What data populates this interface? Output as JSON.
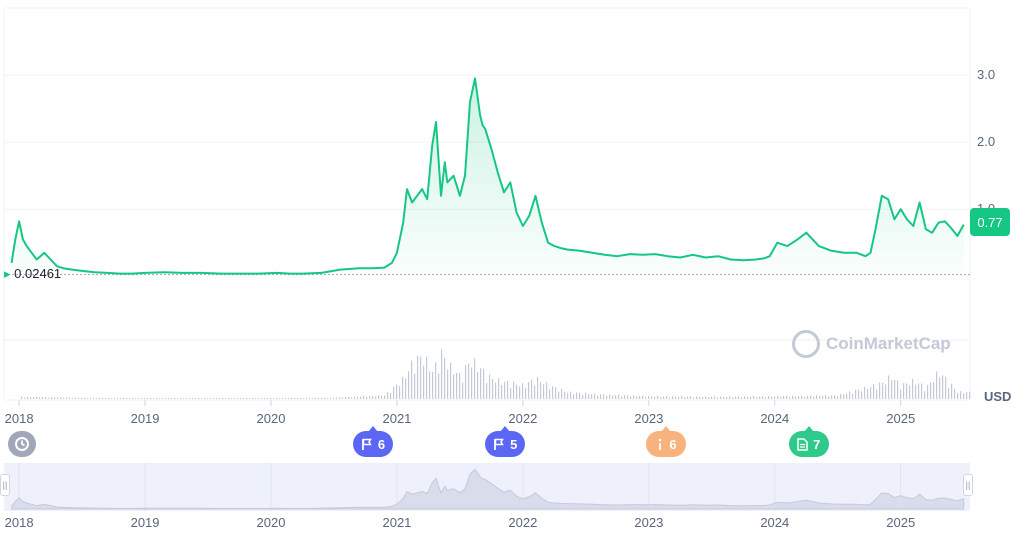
{
  "chart_data": {
    "type": "area",
    "xlim": [
      2017.88,
      2025.55
    ],
    "ylim": [
      -0.95,
      4.0
    ],
    "price_ticks": [
      "3.0",
      "2.0",
      "1.0"
    ],
    "price_tick_values": [
      3.0,
      2.0,
      1.0
    ],
    "year_ticks": [
      "2018",
      "2019",
      "2020",
      "2021",
      "2022",
      "2023",
      "2024",
      "2025"
    ],
    "year_tick_values": [
      2018,
      2019,
      2020,
      2021,
      2022,
      2023,
      2024,
      2025
    ],
    "currency": "USD",
    "base_value": 0.02461,
    "base_label": "0.02461",
    "current_value_label": "0.77",
    "watermark": "CoinMarketCap",
    "line_color": "#16c784",
    "series": [
      {
        "x": [
          2017.94,
          2017.97,
          2018.0,
          2018.03,
          2018.06,
          2018.1,
          2018.14,
          2018.2,
          2018.25,
          2018.3,
          2018.35,
          2018.42,
          2018.5,
          2018.6,
          2018.7,
          2018.8,
          2018.9,
          2019.0,
          2019.15,
          2019.3,
          2019.45,
          2019.6,
          2019.75,
          2019.9,
          2020.05,
          2020.15,
          2020.25,
          2020.4,
          2020.55,
          2020.7,
          2020.8,
          2020.9,
          2020.96,
          2021.0,
          2021.05,
          2021.08,
          2021.12,
          2021.16,
          2021.2,
          2021.24,
          2021.28,
          2021.31,
          2021.35,
          2021.38,
          2021.4,
          2021.45,
          2021.5,
          2021.54,
          2021.58,
          2021.62,
          2021.66,
          2021.68,
          2021.7,
          2021.75,
          2021.8,
          2021.85,
          2021.9,
          2021.95,
          2022.0,
          2022.05,
          2022.1,
          2022.15,
          2022.2,
          2022.25,
          2022.3,
          2022.35,
          2022.45,
          2022.55,
          2022.65,
          2022.75,
          2022.85,
          2022.95,
          2023.05,
          2023.15,
          2023.25,
          2023.35,
          2023.45,
          2023.55,
          2023.65,
          2023.75,
          2023.85,
          2023.92,
          2023.96,
          2024.02,
          2024.1,
          2024.18,
          2024.25,
          2024.35,
          2024.45,
          2024.55,
          2024.65,
          2024.72,
          2024.76,
          2024.8,
          2024.85,
          2024.9,
          2024.95,
          2025.0,
          2025.05,
          2025.1,
          2025.15,
          2025.2,
          2025.25,
          2025.3,
          2025.35,
          2025.4,
          2025.45,
          2025.5
        ],
        "y": [
          0.2,
          0.55,
          0.82,
          0.55,
          0.45,
          0.35,
          0.25,
          0.35,
          0.25,
          0.15,
          0.12,
          0.1,
          0.08,
          0.06,
          0.05,
          0.04,
          0.04,
          0.05,
          0.06,
          0.05,
          0.05,
          0.04,
          0.04,
          0.04,
          0.05,
          0.04,
          0.04,
          0.05,
          0.1,
          0.12,
          0.12,
          0.13,
          0.2,
          0.35,
          0.8,
          1.3,
          1.1,
          1.2,
          1.3,
          1.15,
          1.95,
          2.3,
          1.2,
          1.7,
          1.4,
          1.5,
          1.2,
          1.5,
          2.6,
          2.95,
          2.4,
          2.25,
          2.2,
          1.9,
          1.55,
          1.25,
          1.4,
          0.95,
          0.75,
          0.9,
          1.2,
          0.8,
          0.5,
          0.45,
          0.42,
          0.4,
          0.38,
          0.35,
          0.32,
          0.3,
          0.33,
          0.32,
          0.33,
          0.3,
          0.28,
          0.32,
          0.28,
          0.3,
          0.25,
          0.24,
          0.25,
          0.27,
          0.3,
          0.5,
          0.45,
          0.55,
          0.65,
          0.45,
          0.38,
          0.35,
          0.35,
          0.3,
          0.35,
          0.7,
          1.2,
          1.15,
          0.85,
          1.0,
          0.85,
          0.75,
          1.1,
          0.7,
          0.65,
          0.8,
          0.82,
          0.72,
          0.6,
          0.77
        ]
      }
    ],
    "volume": {
      "x": [
        2018.0,
        2018.5,
        2019.0,
        2019.5,
        2020.0,
        2020.5,
        2020.9,
        2021.05,
        2021.12,
        2021.2,
        2021.28,
        2021.35,
        2021.42,
        2021.5,
        2021.58,
        2021.65,
        2021.72,
        2021.8,
        2021.9,
        2022.0,
        2022.1,
        2022.2,
        2022.35,
        2022.6,
        2023.0,
        2023.5,
        2024.0,
        2024.5,
        2024.85,
        2024.92,
        2025.0,
        2025.1,
        2025.2,
        2025.3,
        2025.45
      ],
      "values": [
        0.05,
        0.03,
        0.02,
        0.02,
        0.02,
        0.03,
        0.08,
        0.45,
        0.8,
        0.95,
        0.6,
        1.0,
        0.7,
        0.5,
        0.85,
        0.7,
        0.5,
        0.4,
        0.35,
        0.3,
        0.45,
        0.3,
        0.15,
        0.1,
        0.06,
        0.05,
        0.06,
        0.08,
        0.35,
        0.5,
        0.3,
        0.4,
        0.25,
        0.6,
        0.15
      ]
    },
    "events": [
      {
        "icon": "flag",
        "label": "6",
        "x": 2020.81,
        "color": "#5b67f4"
      },
      {
        "icon": "flag",
        "label": "5",
        "x": 2021.86,
        "color": "#5b67f4"
      },
      {
        "icon": "info",
        "label": "6",
        "x": 2023.14,
        "color": "#f7b27d"
      },
      {
        "icon": "doc",
        "label": "7",
        "x": 2024.27,
        "color": "#2fc98a"
      }
    ]
  }
}
